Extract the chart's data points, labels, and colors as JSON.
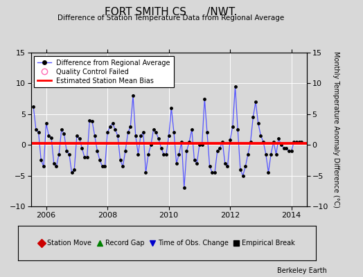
{
  "title": "FORT SMITH CS      /NWT.",
  "subtitle": "Difference of Station Temperature Data from Regional Average",
  "ylabel_right": "Monthly Temperature Anomaly Difference (°C)",
  "xlim": [
    2005.5,
    2014.5
  ],
  "ylim": [
    -10,
    15
  ],
  "yticks": [
    -10,
    -5,
    0,
    5,
    10,
    15
  ],
  "xticks": [
    2006,
    2008,
    2010,
    2012,
    2014
  ],
  "bias": 0.3,
  "line_color": "#5555ff",
  "marker_color": "#000000",
  "bias_color": "#ff0000",
  "bg_color": "#d8d8d8",
  "fig_color": "#d8d8d8",
  "x_values": [
    2005.583,
    2005.667,
    2005.75,
    2005.833,
    2005.917,
    2006.0,
    2006.083,
    2006.167,
    2006.25,
    2006.333,
    2006.417,
    2006.5,
    2006.583,
    2006.667,
    2006.75,
    2006.833,
    2006.917,
    2007.0,
    2007.083,
    2007.167,
    2007.25,
    2007.333,
    2007.417,
    2007.5,
    2007.583,
    2007.667,
    2007.75,
    2007.833,
    2007.917,
    2008.0,
    2008.083,
    2008.167,
    2008.25,
    2008.333,
    2008.417,
    2008.5,
    2008.583,
    2008.667,
    2008.75,
    2008.833,
    2008.917,
    2009.0,
    2009.083,
    2009.167,
    2009.25,
    2009.333,
    2009.417,
    2009.5,
    2009.583,
    2009.667,
    2009.75,
    2009.833,
    2009.917,
    2010.0,
    2010.083,
    2010.167,
    2010.25,
    2010.333,
    2010.417,
    2010.5,
    2010.583,
    2010.667,
    2010.75,
    2010.833,
    2010.917,
    2011.0,
    2011.083,
    2011.167,
    2011.25,
    2011.333,
    2011.417,
    2011.5,
    2011.583,
    2011.667,
    2011.75,
    2011.833,
    2011.917,
    2012.0,
    2012.083,
    2012.167,
    2012.25,
    2012.333,
    2012.417,
    2012.5,
    2012.583,
    2012.667,
    2012.75,
    2012.833,
    2012.917,
    2013.0,
    2013.083,
    2013.167,
    2013.25,
    2013.333,
    2013.417,
    2013.5,
    2013.583,
    2013.667,
    2013.75,
    2013.833,
    2013.917,
    2014.0,
    2014.083,
    2014.167,
    2014.25,
    2014.333
  ],
  "y_values": [
    6.2,
    2.5,
    2.0,
    -2.5,
    -3.5,
    3.5,
    1.5,
    1.2,
    -3.0,
    -3.5,
    -1.5,
    2.5,
    1.8,
    -1.0,
    -1.5,
    -4.5,
    -4.0,
    1.5,
    1.0,
    -0.5,
    -2.0,
    -2.0,
    4.0,
    3.8,
    1.5,
    -1.0,
    -2.5,
    -3.5,
    -3.5,
    2.0,
    3.0,
    3.5,
    2.5,
    1.5,
    -2.5,
    -3.5,
    -1.0,
    2.0,
    3.0,
    8.0,
    1.5,
    -1.5,
    1.5,
    2.0,
    -4.5,
    -1.5,
    0.0,
    2.5,
    2.0,
    1.0,
    -0.5,
    -1.5,
    -1.5,
    1.5,
    6.0,
    2.0,
    -3.0,
    -1.5,
    0.5,
    -7.0,
    -1.0,
    0.5,
    2.5,
    -2.5,
    -3.0,
    0.0,
    0.0,
    7.5,
    2.0,
    -3.5,
    -4.5,
    -4.5,
    -1.0,
    -0.5,
    0.5,
    -3.0,
    -3.5,
    0.8,
    3.0,
    9.5,
    2.5,
    -4.0,
    -5.0,
    -3.5,
    -1.5,
    0.5,
    4.5,
    7.0,
    3.5,
    1.5,
    0.5,
    -1.5,
    -4.5,
    -1.5,
    0.5,
    -1.5,
    1.0,
    0.0,
    -0.5,
    -0.5,
    -1.0,
    -1.0,
    0.5,
    0.5,
    0.5,
    0.5
  ],
  "bottom_legend": [
    {
      "label": "Station Move",
      "color": "#cc0000",
      "marker": "D"
    },
    {
      "label": "Record Gap",
      "color": "#008000",
      "marker": "^"
    },
    {
      "label": "Time of Obs. Change",
      "color": "#0000cc",
      "marker": "v"
    },
    {
      "label": "Empirical Break",
      "color": "#000000",
      "marker": "s"
    }
  ],
  "watermark": "Berkeley Earth"
}
